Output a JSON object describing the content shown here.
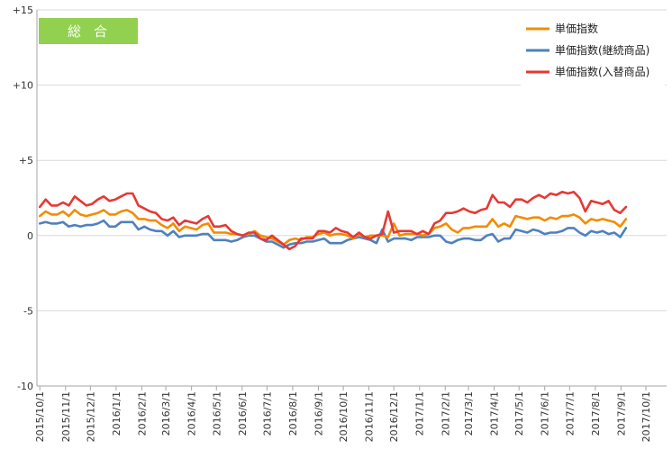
{
  "chart_data": {
    "type": "line",
    "badge": "総合",
    "badge_color": "#92D050",
    "ylim": [
      -10,
      15
    ],
    "y_ticks": [
      {
        "v": 15,
        "label": "+15"
      },
      {
        "v": 10,
        "label": "+10"
      },
      {
        "v": 5,
        "label": "+5"
      },
      {
        "v": 0,
        "label": "0"
      },
      {
        "v": -5,
        "label": "-5"
      },
      {
        "v": -10,
        "label": "-10"
      }
    ],
    "x_ticks": [
      {
        "w": 0,
        "label": "2015/10/1"
      },
      {
        "w": 4.43,
        "label": "2015/11/1"
      },
      {
        "w": 8.71,
        "label": "2015/12/1"
      },
      {
        "w": 13.14,
        "label": "2016/1/1"
      },
      {
        "w": 17.57,
        "label": "2016/2/1"
      },
      {
        "w": 21.71,
        "label": "2016/3/1"
      },
      {
        "w": 26.14,
        "label": "2016/4/1"
      },
      {
        "w": 30.43,
        "label": "2016/5/1"
      },
      {
        "w": 34.86,
        "label": "2016/6/1"
      },
      {
        "w": 39.14,
        "label": "2016/7/1"
      },
      {
        "w": 43.57,
        "label": "2016/8/1"
      },
      {
        "w": 48.0,
        "label": "2016/9/1"
      },
      {
        "w": 52.29,
        "label": "2016/10/1"
      },
      {
        "w": 56.71,
        "label": "2016/11/1"
      },
      {
        "w": 61.0,
        "label": "2016/12/1"
      },
      {
        "w": 65.43,
        "label": "2017/1/1"
      },
      {
        "w": 69.86,
        "label": "2017/2/1"
      },
      {
        "w": 73.86,
        "label": "2017/3/1"
      },
      {
        "w": 78.29,
        "label": "2017/4/1"
      },
      {
        "w": 82.57,
        "label": "2017/5/1"
      },
      {
        "w": 87.0,
        "label": "2017/6/1"
      },
      {
        "w": 91.29,
        "label": "2017/7/1"
      },
      {
        "w": 95.71,
        "label": "2017/8/1"
      },
      {
        "w": 100.14,
        "label": "2017/9/1"
      },
      {
        "w": 104.43,
        "label": "2017/10/1"
      }
    ],
    "x_range": [
      -0.5,
      108
    ],
    "legend_position": "top-right",
    "grid": "horizontal",
    "series": [
      {
        "name": "単価指数",
        "color": "#F28C00",
        "values": [
          1.3,
          1.6,
          1.4,
          1.4,
          1.6,
          1.3,
          1.7,
          1.4,
          1.3,
          1.4,
          1.5,
          1.7,
          1.4,
          1.4,
          1.6,
          1.7,
          1.5,
          1.1,
          1.1,
          1.0,
          1.0,
          0.7,
          0.5,
          0.8,
          0.3,
          0.6,
          0.5,
          0.4,
          0.7,
          0.8,
          0.2,
          0.2,
          0.2,
          0.1,
          0.1,
          0.0,
          0.1,
          0.3,
          0.0,
          -0.1,
          -0.2,
          -0.4,
          -0.6,
          -0.3,
          -0.2,
          -0.3,
          -0.1,
          -0.1,
          0.1,
          0.2,
          0.0,
          0.1,
          0.1,
          0.0,
          -0.2,
          0.1,
          -0.1,
          0.0,
          0.0,
          0.0,
          -0.1,
          0.8,
          0.0,
          0.1,
          0.1,
          0.1,
          0.0,
          0.1,
          0.5,
          0.6,
          0.8,
          0.4,
          0.2,
          0.5,
          0.5,
          0.6,
          0.6,
          0.6,
          1.1,
          0.6,
          0.8,
          0.6,
          1.3,
          1.2,
          1.1,
          1.2,
          1.2,
          1.0,
          1.2,
          1.1,
          1.3,
          1.3,
          1.4,
          1.2,
          0.8,
          1.1,
          1.0,
          1.1,
          1.0,
          0.9,
          0.6,
          1.1
        ]
      },
      {
        "name": "単価指数(継続商品)",
        "color": "#4F81BD",
        "values": [
          0.8,
          0.9,
          0.8,
          0.8,
          0.9,
          0.6,
          0.7,
          0.6,
          0.7,
          0.7,
          0.8,
          1.0,
          0.6,
          0.6,
          0.9,
          0.9,
          0.9,
          0.4,
          0.6,
          0.4,
          0.3,
          0.3,
          0.0,
          0.3,
          -0.1,
          0.0,
          0.0,
          0.0,
          0.1,
          0.1,
          -0.3,
          -0.3,
          -0.3,
          -0.4,
          -0.3,
          -0.1,
          0.0,
          0.0,
          -0.2,
          -0.4,
          -0.4,
          -0.6,
          -0.8,
          -0.6,
          -0.5,
          -0.5,
          -0.4,
          -0.4,
          -0.3,
          -0.2,
          -0.5,
          -0.5,
          -0.5,
          -0.3,
          -0.2,
          -0.1,
          -0.2,
          -0.3,
          -0.5,
          0.4,
          -0.4,
          -0.2,
          -0.2,
          -0.2,
          -0.3,
          -0.1,
          -0.1,
          -0.1,
          0.0,
          0.0,
          -0.4,
          -0.5,
          -0.3,
          -0.2,
          -0.2,
          -0.3,
          -0.3,
          0.0,
          0.1,
          -0.4,
          -0.2,
          -0.2,
          0.4,
          0.3,
          0.2,
          0.4,
          0.3,
          0.1,
          0.2,
          0.2,
          0.3,
          0.5,
          0.5,
          0.2,
          0.0,
          0.3,
          0.2,
          0.3,
          0.1,
          0.2,
          -0.1,
          0.5
        ]
      },
      {
        "name": "単価指数(入替商品)",
        "color": "#E53935",
        "values": [
          1.9,
          2.4,
          2.0,
          2.0,
          2.2,
          2.0,
          2.6,
          2.3,
          2.0,
          2.1,
          2.4,
          2.6,
          2.3,
          2.4,
          2.6,
          2.8,
          2.8,
          2.0,
          1.8,
          1.6,
          1.5,
          1.1,
          1.0,
          1.2,
          0.7,
          1.0,
          0.9,
          0.8,
          1.1,
          1.3,
          0.6,
          0.6,
          0.7,
          0.3,
          0.1,
          0.0,
          0.2,
          0.2,
          -0.2,
          -0.3,
          0.0,
          -0.3,
          -0.6,
          -0.9,
          -0.7,
          -0.2,
          -0.2,
          -0.2,
          0.3,
          0.3,
          0.2,
          0.5,
          0.3,
          0.2,
          -0.1,
          0.2,
          -0.1,
          -0.2,
          0.0,
          0.1,
          1.6,
          0.2,
          0.3,
          0.3,
          0.3,
          0.1,
          0.3,
          0.1,
          0.8,
          1.0,
          1.5,
          1.5,
          1.6,
          1.8,
          1.6,
          1.5,
          1.7,
          1.8,
          2.7,
          2.2,
          2.2,
          1.9,
          2.4,
          2.4,
          2.2,
          2.5,
          2.7,
          2.5,
          2.8,
          2.7,
          2.9,
          2.8,
          2.9,
          2.5,
          1.6,
          2.3,
          2.2,
          2.1,
          2.3,
          1.7,
          1.5,
          1.9
        ]
      }
    ]
  }
}
